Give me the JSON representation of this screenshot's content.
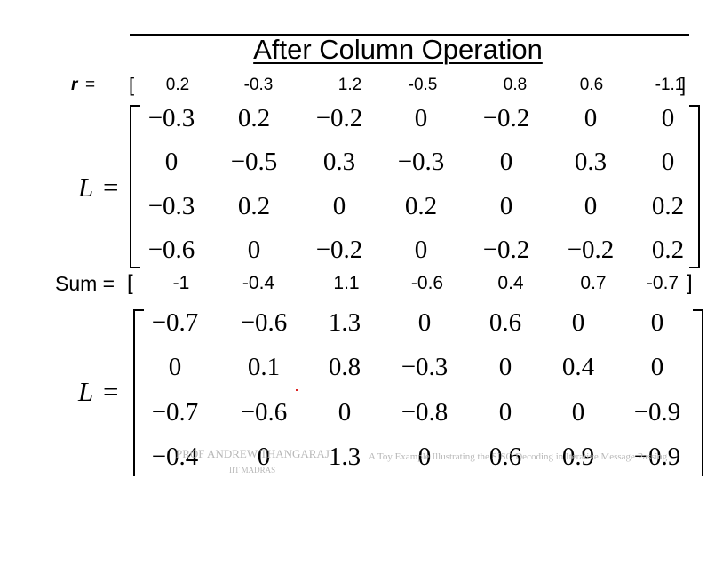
{
  "title": "After Column Operation",
  "r_row": {
    "label": "r",
    "eq": "=",
    "open": "[",
    "close": "]",
    "values": [
      "0.2",
      "-0.3",
      "1.2",
      "-0.5",
      "0.8",
      "0.6",
      "-1.1"
    ]
  },
  "matrix1": {
    "label": "L",
    "eq": "=",
    "rows": [
      [
        "−0.3",
        "0.2",
        "−0.2",
        "0",
        "−0.2",
        "0",
        "0"
      ],
      [
        "0",
        "−0.5",
        "0.3",
        "−0.3",
        "0",
        "0.3",
        "0"
      ],
      [
        "−0.3",
        "0.2",
        "0",
        "0.2",
        "0",
        "0",
        "0.2"
      ],
      [
        "−0.6",
        "0",
        "−0.2",
        "0",
        "−0.2",
        "−0.2",
        "0.2"
      ]
    ]
  },
  "sum_row": {
    "label": "Sum =",
    "open": "[",
    "close": "]",
    "values": [
      "-1",
      "-0.4",
      "1.1",
      "-0.6",
      "0.4",
      "0.7",
      "-0.7"
    ]
  },
  "matrix2": {
    "label": "L",
    "eq": "=",
    "rows": [
      [
        "−0.7",
        "−0.6",
        "1.3",
        "0",
        "0.6",
        "0",
        "0"
      ],
      [
        "0",
        "0.1",
        "0.8",
        "−0.3",
        "0",
        "0.4",
        "0"
      ],
      [
        "−0.7",
        "−0.6",
        "0",
        "−0.8",
        "0",
        "0",
        "−0.9"
      ],
      [
        "−0.4",
        "0",
        "1.3",
        "0",
        "0.6",
        "0.9",
        "−0.9"
      ]
    ]
  },
  "watermark": {
    "author": "PROF ANDREW THANGARAJ",
    "institute": "IIT MADRAS",
    "caption": "A Toy Example Illustrating the SISO Decoding in Iterative Message Passing"
  }
}
